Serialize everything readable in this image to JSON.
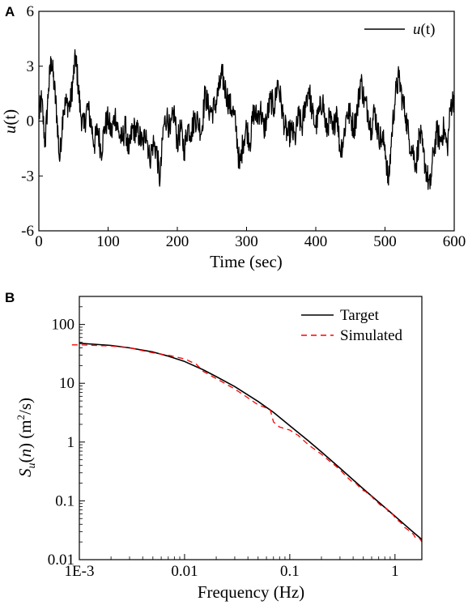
{
  "chart_data": [
    {
      "panel": "A",
      "type": "line",
      "xlabel": "Time (sec)",
      "ylabel_main": "u",
      "ylabel_suffix": "(t)",
      "xlim": [
        0,
        600
      ],
      "ylim": [
        -6,
        6
      ],
      "xticks": [
        0,
        100,
        200,
        300,
        400,
        500,
        600
      ],
      "yticks": [
        6,
        3,
        0,
        -3,
        -6
      ],
      "legend_loc": "top-right",
      "series": [
        {
          "name_main": "u",
          "name_suffix": "(t)",
          "color": "#000000",
          "anchors": [
            [
              0,
              0.2
            ],
            [
              4,
              1.2
            ],
            [
              9,
              -1.3
            ],
            [
              14,
              1.8
            ],
            [
              18,
              3.4
            ],
            [
              22,
              2.0
            ],
            [
              26,
              0.3
            ],
            [
              30,
              -2.2
            ],
            [
              35,
              0.6
            ],
            [
              40,
              1.0
            ],
            [
              45,
              0.8
            ],
            [
              49,
              2.1
            ],
            [
              53,
              3.6
            ],
            [
              56,
              2.3
            ],
            [
              60,
              0.5
            ],
            [
              65,
              -0.4
            ],
            [
              70,
              0.8
            ],
            [
              75,
              0.0
            ],
            [
              80,
              -1.3
            ],
            [
              85,
              -0.4
            ],
            [
              90,
              -1.7
            ],
            [
              95,
              -0.3
            ],
            [
              100,
              0.1
            ],
            [
              105,
              -0.7
            ],
            [
              110,
              0.4
            ],
            [
              115,
              -0.6
            ],
            [
              120,
              -1.1
            ],
            [
              125,
              -0.3
            ],
            [
              130,
              -1.8
            ],
            [
              135,
              -0.4
            ],
            [
              140,
              -0.5
            ],
            [
              145,
              -0.8
            ],
            [
              150,
              -1.3
            ],
            [
              155,
              -0.5
            ],
            [
              160,
              -2.1
            ],
            [
              165,
              -1.2
            ],
            [
              170,
              -1.6
            ],
            [
              175,
              -3.3
            ],
            [
              180,
              -0.3
            ],
            [
              185,
              0.3
            ],
            [
              190,
              -0.7
            ],
            [
              195,
              0.6
            ],
            [
              200,
              -1.2
            ],
            [
              205,
              -0.4
            ],
            [
              210,
              -1.6
            ],
            [
              215,
              -0.3
            ],
            [
              220,
              -0.6
            ],
            [
              225,
              0.2
            ],
            [
              230,
              0.0
            ],
            [
              235,
              -0.6
            ],
            [
              240,
              1.5
            ],
            [
              245,
              0.7
            ],
            [
              250,
              0.5
            ],
            [
              255,
              0.9
            ],
            [
              260,
              1.7
            ],
            [
              265,
              2.5
            ],
            [
              270,
              1.6
            ],
            [
              275,
              0.9
            ],
            [
              280,
              0.6
            ],
            [
              285,
              -0.4
            ],
            [
              290,
              -2.6
            ],
            [
              295,
              -1.1
            ],
            [
              300,
              -0.3
            ],
            [
              305,
              -1.2
            ],
            [
              310,
              0.5
            ],
            [
              315,
              0.2
            ],
            [
              320,
              0.7
            ],
            [
              325,
              -0.5
            ],
            [
              330,
              0.3
            ],
            [
              335,
              1.2
            ],
            [
              340,
              0.7
            ],
            [
              345,
              2.2
            ],
            [
              350,
              1.0
            ],
            [
              355,
              -0.3
            ],
            [
              360,
              -0.8
            ],
            [
              365,
              -0.5
            ],
            [
              370,
              -1.0
            ],
            [
              375,
              0.3
            ],
            [
              380,
              -0.4
            ],
            [
              385,
              1.0
            ],
            [
              390,
              1.8
            ],
            [
              395,
              0.4
            ],
            [
              400,
              -0.3
            ],
            [
              405,
              0.5
            ],
            [
              410,
              1.2
            ],
            [
              415,
              -0.6
            ],
            [
              420,
              0.2
            ],
            [
              425,
              -0.7
            ],
            [
              430,
              0.8
            ],
            [
              435,
              -1.6
            ],
            [
              440,
              -1.0
            ],
            [
              445,
              0.5
            ],
            [
              450,
              0.3
            ],
            [
              455,
              -0.4
            ],
            [
              460,
              0.6
            ],
            [
              465,
              2.3
            ],
            [
              470,
              1.1
            ],
            [
              475,
              0.6
            ],
            [
              480,
              -0.4
            ],
            [
              485,
              0.6
            ],
            [
              490,
              -0.7
            ],
            [
              495,
              -1.0
            ],
            [
              500,
              -1.3
            ],
            [
              505,
              -3.5
            ],
            [
              510,
              -0.6
            ],
            [
              515,
              1.4
            ],
            [
              520,
              2.4
            ],
            [
              525,
              1.2
            ],
            [
              530,
              0.3
            ],
            [
              535,
              -1.0
            ],
            [
              540,
              -1.6
            ],
            [
              545,
              -2.4
            ],
            [
              550,
              -0.6
            ],
            [
              555,
              -1.7
            ],
            [
              560,
              -2.8
            ],
            [
              565,
              -3.7
            ],
            [
              570,
              -1.7
            ],
            [
              575,
              -0.6
            ],
            [
              580,
              -1.1
            ],
            [
              585,
              -0.4
            ],
            [
              590,
              -1.5
            ],
            [
              595,
              0.9
            ],
            [
              600,
              1.3
            ]
          ]
        }
      ]
    },
    {
      "panel": "B",
      "type": "line",
      "scale": "log-log",
      "xlabel": "Frequency (Hz)",
      "ylabel_main": "S",
      "ylabel_sub": "u",
      "ylabel_paren_open": "(",
      "ylabel_arg": "n",
      "ylabel_unit": ") (m",
      "ylabel_exp": "2",
      "ylabel_unit_end": "/s)",
      "xlim": [
        0.001,
        1.8
      ],
      "ylim": [
        0.01,
        300
      ],
      "xticks": [
        {
          "value": 0.001,
          "label": "1E-3"
        },
        {
          "value": 0.01,
          "label": "0.01"
        },
        {
          "value": 0.1,
          "label": "0.1"
        },
        {
          "value": 1,
          "label": "1"
        }
      ],
      "yticks": [
        {
          "value": 100,
          "label": "100"
        },
        {
          "value": 10,
          "label": "10"
        },
        {
          "value": 1,
          "label": "1"
        },
        {
          "value": 0.1,
          "label": "0.1"
        },
        {
          "value": 0.01,
          "label": "0.01"
        }
      ],
      "legend_loc": "top-right",
      "series": [
        {
          "name": "Target",
          "color": "#000000",
          "style": "solid",
          "points": [
            [
              0.001,
              48
            ],
            [
              0.002,
              44
            ],
            [
              0.003,
              40
            ],
            [
              0.005,
              34
            ],
            [
              0.007,
              29
            ],
            [
              0.01,
              23.5
            ],
            [
              0.015,
              17
            ],
            [
              0.02,
              13
            ],
            [
              0.03,
              8.8
            ],
            [
              0.05,
              4.9
            ],
            [
              0.07,
              3.2
            ],
            [
              0.1,
              1.9
            ],
            [
              0.15,
              1.05
            ],
            [
              0.2,
              0.68
            ],
            [
              0.3,
              0.36
            ],
            [
              0.5,
              0.16
            ],
            [
              0.7,
              0.095
            ],
            [
              1.0,
              0.055
            ],
            [
              1.5,
              0.029
            ],
            [
              1.8,
              0.022
            ]
          ]
        },
        {
          "name": "Simulated",
          "color": "#ff0000",
          "style": "dashed",
          "points": [
            [
              0.00085,
              45
            ],
            [
              0.001,
              45
            ],
            [
              0.002,
              43
            ],
            [
              0.003,
              40
            ],
            [
              0.005,
              33
            ],
            [
              0.007,
              30
            ],
            [
              0.01,
              26
            ],
            [
              0.013,
              21
            ],
            [
              0.015,
              16
            ],
            [
              0.02,
              12
            ],
            [
              0.03,
              8.0
            ],
            [
              0.05,
              4.3
            ],
            [
              0.065,
              3.6
            ],
            [
              0.07,
              2.2
            ],
            [
              0.08,
              1.8
            ],
            [
              0.1,
              1.6
            ],
            [
              0.12,
              1.3
            ],
            [
              0.15,
              0.9
            ],
            [
              0.2,
              0.62
            ],
            [
              0.3,
              0.34
            ],
            [
              0.5,
              0.15
            ],
            [
              0.7,
              0.09
            ],
            [
              1.0,
              0.052
            ],
            [
              1.5,
              0.027
            ],
            [
              1.8,
              0.02
            ]
          ]
        }
      ]
    }
  ]
}
